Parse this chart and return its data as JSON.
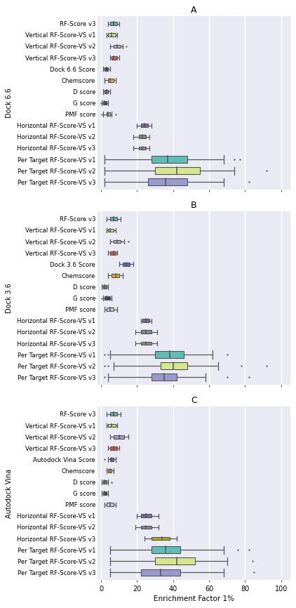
{
  "panels": [
    {
      "label": "A",
      "ylabel": "Dock 6.6",
      "rows": [
        {
          "name": "RF-Score v3",
          "q1": 5,
          "med": 7,
          "q3": 9,
          "whislo": 4,
          "whishi": 10,
          "fliers": [],
          "color": "#6aada8",
          "narrow": true
        },
        {
          "name": "Vertical RF-Score-VS v1",
          "q1": 4,
          "med": 6,
          "q3": 8,
          "whislo": 3,
          "whishi": 9,
          "fliers": [],
          "color": "#c8d87a",
          "narrow": true
        },
        {
          "name": "Vertical RF-Score-VS v2",
          "q1": 7,
          "med": 9,
          "q3": 11,
          "whislo": 5,
          "whishi": 12,
          "fliers": [
            14
          ],
          "color": "#b0b0b8",
          "narrow": true
        },
        {
          "name": "Vertical RF-Score-VS v3",
          "q1": 6,
          "med": 7,
          "q3": 9,
          "whislo": 5,
          "whishi": 10,
          "fliers": [],
          "color": "#d9534f",
          "narrow": true
        },
        {
          "name": "Dock 6.6 Score",
          "q1": 2,
          "med": 3,
          "q3": 4,
          "whislo": 1,
          "whishi": 5,
          "fliers": [],
          "color": "#444444",
          "narrow": true
        },
        {
          "name": "Chemscore",
          "q1": 4,
          "med": 5,
          "q3": 7,
          "whislo": 2,
          "whishi": 8,
          "fliers": [],
          "color": "#e6a827",
          "narrow": true
        },
        {
          "name": "D score",
          "q1": 2,
          "med": 3,
          "q3": 4,
          "whislo": 1,
          "whishi": 5,
          "fliers": [],
          "color": "#7a7a6a",
          "narrow": true
        },
        {
          "name": "G score",
          "q1": 1,
          "med": 2,
          "q3": 3,
          "whislo": 0.5,
          "whishi": 4,
          "fliers": [
            0.1
          ],
          "color": "#444444",
          "narrow": true
        },
        {
          "name": "PMF score",
          "q1": 3,
          "med": 4,
          "q3": 5,
          "whislo": 1,
          "whishi": 6,
          "fliers": [
            0.2,
            8
          ],
          "color": "#b8b8b8",
          "narrow": true
        },
        {
          "name": "Horizontal RF-Score-VS v1",
          "q1": 22,
          "med": 24,
          "q3": 26,
          "whislo": 20,
          "whishi": 28,
          "fliers": [],
          "color": "#7a6699",
          "narrow": true
        },
        {
          "name": "Horizontal RF-Score-VS v2",
          "q1": 21,
          "med": 23,
          "q3": 25,
          "whislo": 18,
          "whishi": 27,
          "fliers": [],
          "color": "#888888",
          "narrow": true
        },
        {
          "name": "Horizontal RF-Score-VS v3",
          "q1": 21,
          "med": 23,
          "q3": 25,
          "whislo": 18,
          "whishi": 27,
          "fliers": [],
          "color": "#888888",
          "narrow": true
        },
        {
          "name": "Per Target RF-Score-VS v1",
          "q1": 28,
          "med": 37,
          "q3": 48,
          "whislo": 2,
          "whishi": 68,
          "fliers": [
            74,
            77
          ],
          "color": "#5bbfb5",
          "narrow": false
        },
        {
          "name": "Per Target RF-Score-VS v2",
          "q1": 30,
          "med": 42,
          "q3": 55,
          "whislo": 2,
          "whishi": 74,
          "fliers": [
            92
          ],
          "color": "#d4e88a",
          "narrow": false
        },
        {
          "name": "Per Target RF-Score-VS v3",
          "q1": 26,
          "med": 36,
          "q3": 48,
          "whislo": 2,
          "whishi": 68,
          "fliers": [
            82
          ],
          "color": "#9999cc",
          "narrow": false
        }
      ]
    },
    {
      "label": "B",
      "ylabel": "Dock 3.6",
      "rows": [
        {
          "name": "RF-Score v3",
          "q1": 5,
          "med": 7,
          "q3": 9,
          "whislo": 3,
          "whishi": 11,
          "fliers": [],
          "color": "#6aada8",
          "narrow": true
        },
        {
          "name": "Vertical RF-Score-VS v1",
          "q1": 4,
          "med": 5,
          "q3": 7,
          "whislo": 3,
          "whishi": 8,
          "fliers": [],
          "color": "#c8d87a",
          "narrow": true
        },
        {
          "name": "Vertical RF-Score-VS v2",
          "q1": 7,
          "med": 9,
          "q3": 11,
          "whislo": 5,
          "whishi": 13,
          "fliers": [
            15
          ],
          "color": "#b0b0b8",
          "narrow": true
        },
        {
          "name": "Vertical RF-Score-VS v3",
          "q1": 5,
          "med": 7,
          "q3": 8,
          "whislo": 4,
          "whishi": 9,
          "fliers": [],
          "color": "#d9534f",
          "narrow": true
        },
        {
          "name": "Dock 3.6 Score",
          "q1": 12,
          "med": 14,
          "q3": 16,
          "whislo": 10,
          "whishi": 18,
          "fliers": [],
          "color": "#4c72b0",
          "narrow": true
        },
        {
          "name": "Chemscore",
          "q1": 6,
          "med": 8,
          "q3": 10,
          "whislo": 4,
          "whishi": 12,
          "fliers": [],
          "color": "#e6a827",
          "narrow": true
        },
        {
          "name": "D score",
          "q1": 1,
          "med": 2,
          "q3": 3,
          "whislo": 0.5,
          "whishi": 4,
          "fliers": [],
          "color": "#7a7a6a",
          "narrow": true
        },
        {
          "name": "G score",
          "q1": 2,
          "med": 3,
          "q3": 5,
          "whislo": 1,
          "whishi": 6,
          "fliers": [
            0.2
          ],
          "color": "#444444",
          "narrow": true
        },
        {
          "name": "PMF score",
          "q1": 3,
          "med": 5,
          "q3": 7,
          "whislo": 2,
          "whishi": 9,
          "fliers": [],
          "color": "#c8c8c8",
          "narrow": true
        },
        {
          "name": "Horizontal RF-Score-VS v1",
          "q1": 23,
          "med": 25,
          "q3": 27,
          "whislo": 22,
          "whishi": 28,
          "fliers": [],
          "color": "#7a6699",
          "narrow": true
        },
        {
          "name": "Horizontal RF-Score-VS v2",
          "q1": 22,
          "med": 25,
          "q3": 28,
          "whislo": 19,
          "whishi": 31,
          "fliers": [],
          "color": "#888888",
          "narrow": true
        },
        {
          "name": "Horizontal RF-Score-VS v3",
          "q1": 22,
          "med": 25,
          "q3": 28,
          "whislo": 19,
          "whishi": 31,
          "fliers": [],
          "color": "#888888",
          "narrow": true
        },
        {
          "name": "Per Target RF-Score-VS v1",
          "q1": 30,
          "med": 38,
          "q3": 46,
          "whislo": 5,
          "whishi": 62,
          "fliers": [
            2,
            4,
            70
          ],
          "color": "#5bbfb5",
          "narrow": false
        },
        {
          "name": "Per Target RF-Score-VS v2",
          "q1": 33,
          "med": 40,
          "q3": 48,
          "whislo": 7,
          "whishi": 65,
          "fliers": [
            2,
            4,
            78,
            92
          ],
          "color": "#d4e88a",
          "narrow": false
        },
        {
          "name": "Per Target RF-Score-VS v3",
          "q1": 28,
          "med": 35,
          "q3": 42,
          "whislo": 4,
          "whishi": 58,
          "fliers": [
            2,
            70,
            82
          ],
          "color": "#9999cc",
          "narrow": false
        }
      ]
    },
    {
      "label": "C",
      "ylabel": "Autodock Vina",
      "rows": [
        {
          "name": "RF-Score v3",
          "q1": 5,
          "med": 7,
          "q3": 9,
          "whislo": 3,
          "whishi": 11,
          "fliers": [],
          "color": "#6aada8",
          "narrow": true
        },
        {
          "name": "Vertical RF-Score-VS v1",
          "q1": 4,
          "med": 6,
          "q3": 8,
          "whislo": 3,
          "whishi": 9,
          "fliers": [],
          "color": "#c8d87a",
          "narrow": true
        },
        {
          "name": "Vertical RF-Score-VS v2",
          "q1": 7,
          "med": 10,
          "q3": 13,
          "whislo": 5,
          "whishi": 15,
          "fliers": [],
          "color": "#9999cc",
          "narrow": true
        },
        {
          "name": "Vertical RF-Score-VS v3",
          "q1": 5,
          "med": 7,
          "q3": 9,
          "whislo": 4,
          "whishi": 10,
          "fliers": [],
          "color": "#d9534f",
          "narrow": true
        },
        {
          "name": "Autodock Vina Score",
          "q1": 5,
          "med": 6,
          "q3": 7,
          "whislo": 4,
          "whishi": 8,
          "fliers": [
            2
          ],
          "color": "#4c72b0",
          "narrow": true
        },
        {
          "name": "Chemscore",
          "q1": 4,
          "med": 5,
          "q3": 6,
          "whislo": 3,
          "whishi": 7,
          "fliers": [],
          "color": "#e6a827",
          "narrow": true
        },
        {
          "name": "D score",
          "q1": 1,
          "med": 2,
          "q3": 3,
          "whislo": 0.5,
          "whishi": 4,
          "fliers": [
            6
          ],
          "color": "#7a7a6a",
          "narrow": true
        },
        {
          "name": "G score",
          "q1": 1,
          "med": 2,
          "q3": 3,
          "whislo": 0.5,
          "whishi": 4,
          "fliers": [],
          "color": "#444444",
          "narrow": true
        },
        {
          "name": "PMF score",
          "q1": 3,
          "med": 5,
          "q3": 7,
          "whislo": 2,
          "whishi": 8,
          "fliers": [],
          "color": "#c8c8c8",
          "narrow": true
        },
        {
          "name": "Horizontal RF-Score-VS v1",
          "q1": 22,
          "med": 25,
          "q3": 28,
          "whislo": 20,
          "whishi": 32,
          "fliers": [],
          "color": "#7a6699",
          "narrow": true
        },
        {
          "name": "Horizontal RF-Score-VS v2",
          "q1": 22,
          "med": 25,
          "q3": 28,
          "whislo": 19,
          "whishi": 32,
          "fliers": [],
          "color": "#888888",
          "narrow": true
        },
        {
          "name": "Horizontal RF-Score-VS v3",
          "q1": 28,
          "med": 34,
          "q3": 38,
          "whislo": 24,
          "whishi": 42,
          "fliers": [],
          "color": "#b5a800",
          "narrow": true
        },
        {
          "name": "Per Target RF-Score-VS v1",
          "q1": 28,
          "med": 36,
          "q3": 44,
          "whislo": 5,
          "whishi": 68,
          "fliers": [
            76,
            82
          ],
          "color": "#5bbfb5",
          "narrow": false
        },
        {
          "name": "Per Target RF-Score-VS v2",
          "q1": 30,
          "med": 42,
          "q3": 52,
          "whislo": 5,
          "whishi": 70,
          "fliers": [
            84
          ],
          "color": "#d4e88a",
          "narrow": false
        },
        {
          "name": "Per Target RF-Score-VS v3",
          "q1": 22,
          "med": 33,
          "q3": 44,
          "whislo": 5,
          "whishi": 68,
          "fliers": [
            85
          ],
          "color": "#9999cc",
          "narrow": false
        }
      ]
    }
  ],
  "xlim": [
    -2,
    105
  ],
  "xticks": [
    0,
    20,
    40,
    60,
    80,
    100
  ],
  "xticklabels": [
    "0",
    "20",
    "40",
    "60",
    "80",
    "100"
  ],
  "xlabel": "Enrichment Factor 1%",
  "bg_color": "#eaeaf4",
  "grid_color": "#ffffff"
}
